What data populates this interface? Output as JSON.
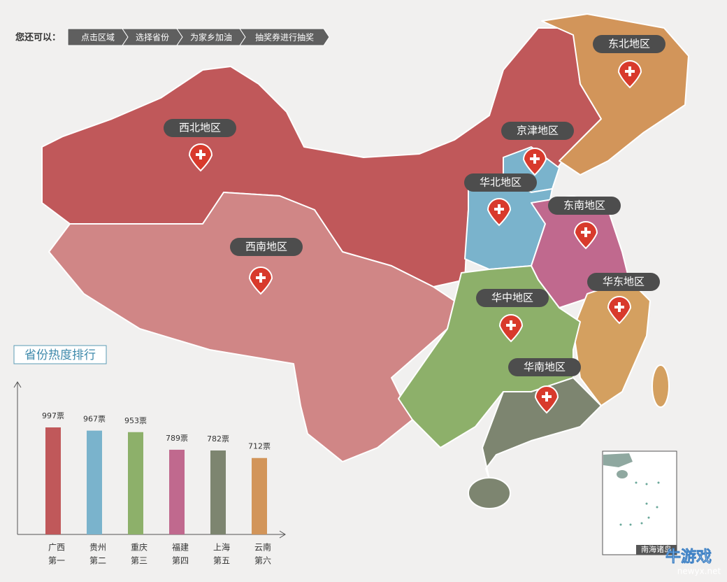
{
  "nav": {
    "prompt": "您还可以：",
    "steps": [
      "点击区域",
      "选择省份",
      "为家乡加油",
      "抽奖券进行抽奖"
    ]
  },
  "map": {
    "regions": [
      "东北地区",
      "西北地区",
      "京津地区",
      "华北地区",
      "东南地区",
      "西南地区",
      "华东地区",
      "华中地区",
      "华南地区"
    ],
    "inset_label": "南海诸岛"
  },
  "watermark": {
    "title": "牛游戏",
    "url": "newyx.net"
  },
  "chart_data": {
    "type": "bar",
    "title": "省份热度排行",
    "categories": [
      "广西",
      "贵州",
      "重庆",
      "福建",
      "上海",
      "云南"
    ],
    "ranks": [
      "第一",
      "第二",
      "第三",
      "第四",
      "第五",
      "第六"
    ],
    "values": [
      997,
      967,
      953,
      789,
      782,
      712
    ],
    "value_labels": [
      "997票",
      "967票",
      "953票",
      "789票",
      "782票",
      "712票"
    ],
    "colors": [
      "#c0585a",
      "#7ab3cc",
      "#8db06a",
      "#c0698e",
      "#7d8570",
      "#d2955a"
    ]
  }
}
